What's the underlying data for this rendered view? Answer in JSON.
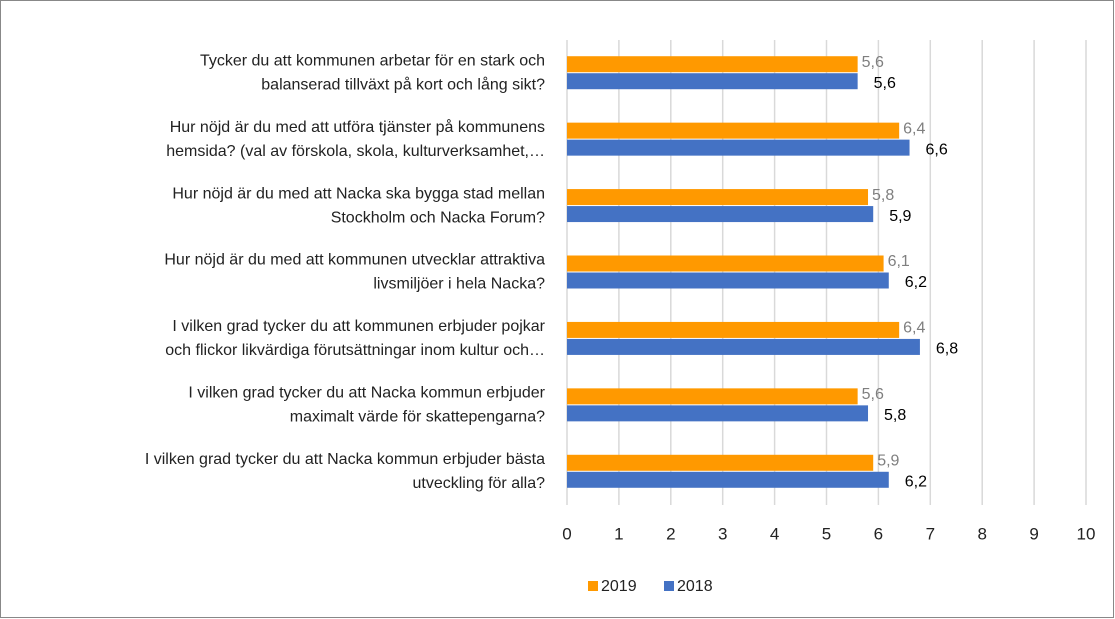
{
  "chart_data": {
    "type": "bar",
    "orientation": "horizontal",
    "categories": [
      [
        "Tycker du att kommunen arbetar för en stark och",
        "balanserad tillväxt på kort och lång sikt?"
      ],
      [
        "Hur nöjd är du med att utföra tjänster på kommunens",
        "hemsida? (val av förskola, skola, kulturverksamhet,…"
      ],
      [
        "Hur nöjd är du med att Nacka ska bygga stad mellan",
        "Stockholm och Nacka Forum?"
      ],
      [
        "Hur nöjd är du med att kommunen utvecklar attraktiva",
        "livsmiljöer i hela Nacka?"
      ],
      [
        "I vilken grad tycker du att kommunen erbjuder pojkar",
        "och flickor likvärdiga förutsättningar inom kultur och…"
      ],
      [
        "I vilken grad tycker du att Nacka kommun erbjuder",
        "maximalt värde för skattepengarna?"
      ],
      [
        "I vilken grad tycker du att Nacka kommun erbjuder bästa",
        "utveckling för alla?"
      ]
    ],
    "series": [
      {
        "name": "2019",
        "color": "#ff9900",
        "values": [
          5.6,
          6.4,
          5.8,
          6.1,
          6.4,
          5.6,
          5.9
        ],
        "value_labels": [
          "5,6",
          "6,4",
          "5,8",
          "6,1",
          "6,4",
          "5,6",
          "5,9"
        ]
      },
      {
        "name": "2018",
        "color": "#4472c4",
        "values": [
          5.6,
          6.6,
          5.9,
          6.2,
          6.8,
          5.8,
          6.2
        ],
        "value_labels": [
          "5,6",
          "6,6",
          "5,9",
          "6,2",
          "6,8",
          "5,8",
          "6,2"
        ]
      }
    ],
    "xlim": [
      0,
      10
    ],
    "xticks": [
      0,
      1,
      2,
      3,
      4,
      5,
      6,
      7,
      8,
      9,
      10
    ],
    "grid": true,
    "legend": "bottom"
  }
}
